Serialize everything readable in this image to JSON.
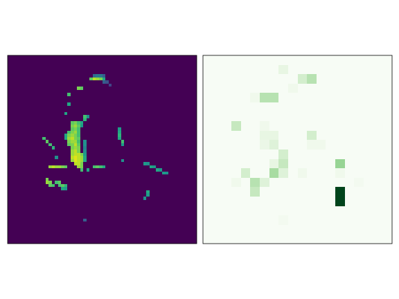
{
  "chart_data": [
    {
      "type": "heatmap",
      "color": "viridis",
      "tick_labels": false,
      "zlim": [
        0,
        1
      ],
      "shape": [
        60,
        60
      ],
      "cells": [
        [
          6,
          27,
          0.35
        ],
        [
          6,
          28,
          0.4
        ],
        [
          6,
          29,
          0.4
        ],
        [
          6,
          30,
          0.3
        ],
        [
          7,
          26,
          0.75
        ],
        [
          7,
          27,
          0.9
        ],
        [
          7,
          28,
          0.85
        ],
        [
          7,
          29,
          0.8
        ],
        [
          7,
          30,
          0.6
        ],
        [
          8,
          30,
          0.3
        ],
        [
          8,
          31,
          0.25
        ],
        [
          9,
          32,
          0.2
        ],
        [
          10,
          22,
          0.8
        ],
        [
          10,
          23,
          0.75
        ],
        [
          12,
          19,
          0.7
        ],
        [
          15,
          19,
          0.6
        ],
        [
          18,
          18,
          0.6
        ],
        [
          19,
          24,
          0.7
        ],
        [
          20,
          24,
          0.65
        ],
        [
          19,
          25,
          0.5
        ],
        [
          21,
          20,
          0.75
        ],
        [
          21,
          21,
          0.8
        ],
        [
          21,
          22,
          0.7
        ],
        [
          21,
          23,
          0.6
        ],
        [
          22,
          20,
          0.8
        ],
        [
          22,
          21,
          0.85
        ],
        [
          22,
          22,
          0.75
        ],
        [
          22,
          23,
          0.55
        ],
        [
          23,
          20,
          0.75
        ],
        [
          23,
          21,
          0.8
        ],
        [
          23,
          22,
          0.7
        ],
        [
          24,
          19,
          0.7
        ],
        [
          24,
          20,
          0.8
        ],
        [
          24,
          21,
          0.85
        ],
        [
          24,
          22,
          0.7
        ],
        [
          25,
          18,
          0.6
        ],
        [
          25,
          19,
          0.8
        ],
        [
          25,
          20,
          0.85
        ],
        [
          25,
          21,
          0.8
        ],
        [
          25,
          22,
          0.7
        ],
        [
          26,
          18,
          0.6
        ],
        [
          26,
          19,
          0.85
        ],
        [
          26,
          20,
          0.9
        ],
        [
          26,
          21,
          0.8
        ],
        [
          26,
          22,
          0.75
        ],
        [
          27,
          19,
          0.8
        ],
        [
          27,
          20,
          0.85
        ],
        [
          27,
          21,
          0.85
        ],
        [
          27,
          22,
          0.7
        ],
        [
          27,
          24,
          0.5
        ],
        [
          28,
          19,
          0.75
        ],
        [
          28,
          20,
          0.8
        ],
        [
          28,
          21,
          0.9
        ],
        [
          28,
          22,
          0.75
        ],
        [
          28,
          24,
          0.5
        ],
        [
          29,
          20,
          0.8
        ],
        [
          29,
          21,
          0.85
        ],
        [
          29,
          22,
          0.8
        ],
        [
          29,
          24,
          0.45
        ],
        [
          30,
          20,
          0.85
        ],
        [
          30,
          21,
          0.9
        ],
        [
          30,
          22,
          0.8
        ],
        [
          30,
          24,
          0.5
        ],
        [
          31,
          20,
          0.85
        ],
        [
          31,
          21,
          0.9
        ],
        [
          31,
          22,
          0.9
        ],
        [
          31,
          23,
          0.8
        ],
        [
          31,
          24,
          0.55
        ],
        [
          32,
          20,
          0.9
        ],
        [
          32,
          21,
          0.95
        ],
        [
          32,
          22,
          0.9
        ],
        [
          32,
          23,
          0.85
        ],
        [
          32,
          24,
          0.6
        ],
        [
          32,
          15,
          0.5
        ],
        [
          33,
          20,
          0.85
        ],
        [
          33,
          21,
          0.95
        ],
        [
          33,
          22,
          0.9
        ],
        [
          33,
          23,
          0.85
        ],
        [
          33,
          24,
          0.6
        ],
        [
          34,
          21,
          0.9
        ],
        [
          34,
          22,
          0.9
        ],
        [
          34,
          23,
          0.8
        ],
        [
          35,
          22,
          0.85
        ],
        [
          35,
          23,
          0.8
        ],
        [
          36,
          23,
          0.7
        ],
        [
          36,
          25,
          0.6
        ],
        [
          26,
          11,
          0.7
        ],
        [
          27,
          12,
          0.75
        ],
        [
          28,
          13,
          0.7
        ],
        [
          29,
          14,
          0.65
        ],
        [
          35,
          13,
          0.85
        ],
        [
          35,
          14,
          0.9
        ],
        [
          35,
          15,
          0.85
        ],
        [
          35,
          16,
          0.85
        ],
        [
          35,
          17,
          0.8
        ],
        [
          35,
          18,
          0.75
        ],
        [
          35,
          27,
          0.7
        ],
        [
          35,
          28,
          0.75
        ],
        [
          35,
          29,
          0.7
        ],
        [
          35,
          30,
          0.6
        ],
        [
          39,
          12,
          0.8
        ],
        [
          40,
          12,
          0.85
        ],
        [
          40,
          13,
          0.8
        ],
        [
          41,
          13,
          0.75
        ],
        [
          41,
          14,
          0.7
        ],
        [
          40,
          15,
          0.7
        ],
        [
          40,
          16,
          0.75
        ],
        [
          41,
          16,
          0.7
        ],
        [
          41,
          17,
          0.75
        ],
        [
          41,
          18,
          0.65
        ],
        [
          42,
          17,
          0.6
        ],
        [
          42,
          18,
          0.55
        ],
        [
          23,
          35,
          0.55
        ],
        [
          24,
          35,
          0.6
        ],
        [
          25,
          35,
          0.65
        ],
        [
          26,
          35,
          0.6
        ],
        [
          27,
          36,
          0.7
        ],
        [
          28,
          36,
          0.55
        ],
        [
          33,
          36,
          0.5
        ],
        [
          34,
          43,
          0.55
        ],
        [
          34,
          44,
          0.5
        ],
        [
          35,
          45,
          0.6
        ],
        [
          35,
          46,
          0.55
        ],
        [
          36,
          47,
          0.6
        ],
        [
          36,
          48,
          0.55
        ],
        [
          37,
          49,
          0.55
        ],
        [
          37,
          50,
          0.5
        ],
        [
          43,
          44,
          0.6
        ],
        [
          44,
          44,
          0.55
        ],
        [
          45,
          43,
          0.5
        ],
        [
          52,
          24,
          0.3
        ]
      ]
    },
    {
      "type": "heatmap",
      "color": "greens",
      "tick_labels": false,
      "zlim": [
        0,
        1
      ],
      "shape": [
        20,
        20
      ],
      "cells": [
        [
          1,
          8,
          0.1
        ],
        [
          2,
          10,
          0.2
        ],
        [
          2,
          11,
          0.3
        ],
        [
          3,
          9,
          0.05
        ],
        [
          4,
          5,
          0.05
        ],
        [
          4,
          6,
          0.3
        ],
        [
          4,
          7,
          0.3
        ],
        [
          7,
          3,
          0.25
        ],
        [
          7,
          6,
          0.05
        ],
        [
          8,
          6,
          0.1
        ],
        [
          8,
          7,
          0.1
        ],
        [
          8,
          11,
          0.2
        ],
        [
          9,
          6,
          0.08
        ],
        [
          9,
          7,
          0.15
        ],
        [
          9,
          11,
          0.05
        ],
        [
          9,
          12,
          0.05
        ],
        [
          10,
          8,
          0.2
        ],
        [
          11,
          7,
          0.1
        ],
        [
          11,
          8,
          0.25
        ],
        [
          11,
          14,
          0.4
        ],
        [
          12,
          4,
          0.2
        ],
        [
          12,
          7,
          0.35
        ],
        [
          12,
          8,
          0.15
        ],
        [
          12,
          10,
          0.05
        ],
        [
          12,
          14,
          0.05
        ],
        [
          13,
          3,
          0.05
        ],
        [
          13,
          5,
          0.3
        ],
        [
          13,
          6,
          0.15
        ],
        [
          13,
          16,
          0.03
        ],
        [
          14,
          5,
          0.25
        ],
        [
          14,
          14,
          1.0
        ],
        [
          15,
          14,
          1.0
        ],
        [
          17,
          8,
          0.03
        ]
      ]
    }
  ]
}
